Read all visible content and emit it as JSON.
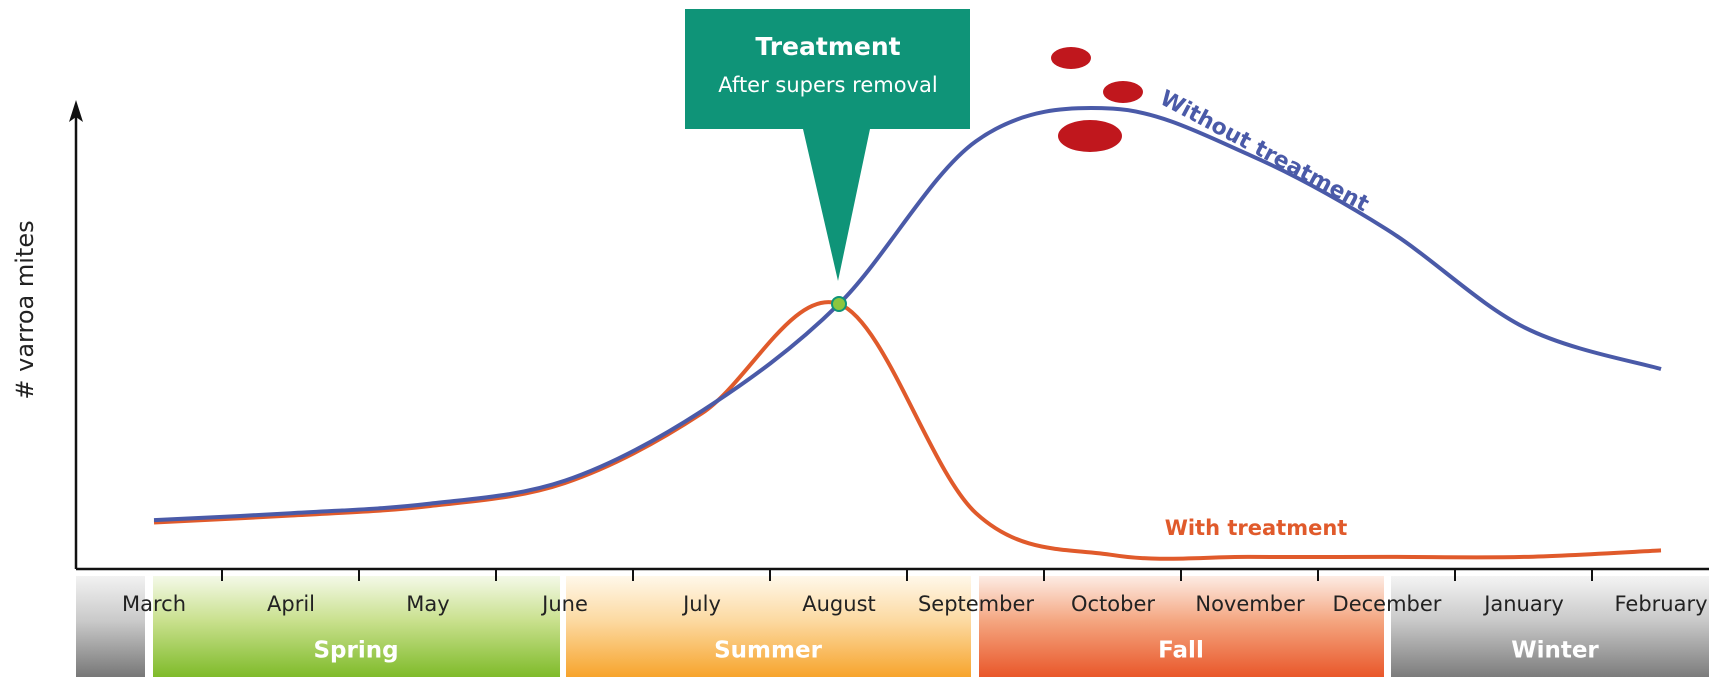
{
  "chart_data": {
    "type": "line",
    "y_label": "# varroa mites",
    "categories": [
      "March",
      "April",
      "May",
      "June",
      "July",
      "August",
      "September",
      "October",
      "November",
      "December",
      "January",
      "February"
    ],
    "series": [
      {
        "name": "Without treatment",
        "color": "#4a5aa8",
        "values": [
          10.5,
          12,
          14,
          19,
          34,
          57,
          92,
          99,
          89,
          73,
          52,
          43
        ]
      },
      {
        "name": "With treatment",
        "color": "#e05a2b",
        "values": [
          10,
          11.5,
          13.5,
          18.5,
          33.5,
          57,
          12,
          3,
          2.6,
          2.6,
          2.6,
          4
        ]
      }
    ],
    "ylim": [
      0,
      100
    ],
    "seasons": [
      "Spring",
      "Summer",
      "Fall",
      "Winter"
    ],
    "annotation": {
      "title": "Treatment",
      "text": "After supers removal"
    }
  }
}
